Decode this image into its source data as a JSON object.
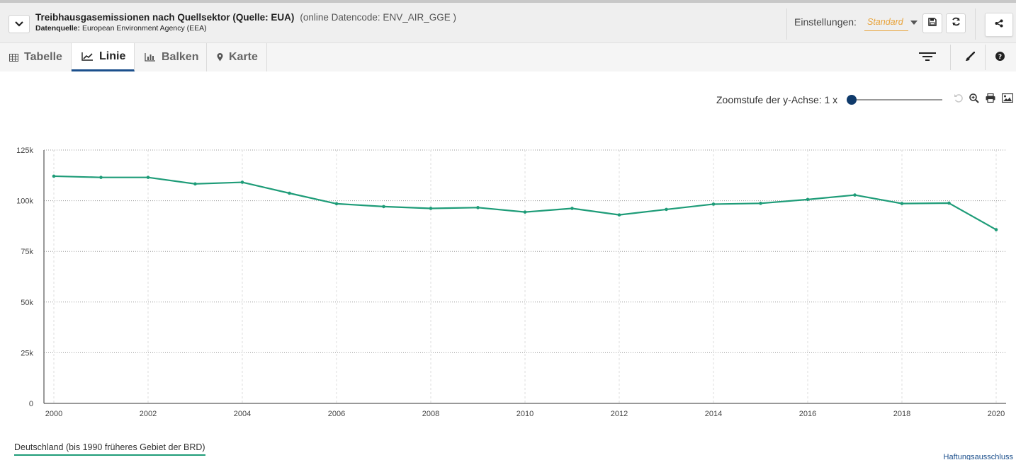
{
  "header": {
    "title": "Treibhausgasemissionen nach Quellsektor (Quelle: EUA)",
    "code": "(online Datencode: ENV_AIR_GGE )",
    "source_label": "Datenquelle:",
    "source_value": "European Environment Agency (EEA)",
    "settings_label": "Einstellungen:",
    "settings_value": "Standard"
  },
  "icons": {
    "collapse": "chevron-down-icon",
    "save": "floppy-disk-icon",
    "refresh": "refresh-icon",
    "share": "share-icon",
    "filter": "filter-icon",
    "style": "brush-icon",
    "help": "question-icon",
    "reset_zoom": "undo-icon",
    "zoom": "magnifier-icon",
    "print": "printer-icon",
    "image": "image-icon"
  },
  "tabs": [
    {
      "label": "Tabelle",
      "icon": "table-icon",
      "active": false
    },
    {
      "label": "Linie",
      "icon": "line-chart-icon",
      "active": true
    },
    {
      "label": "Balken",
      "icon": "bar-chart-icon",
      "active": false
    },
    {
      "label": "Karte",
      "icon": "map-marker-icon",
      "active": false
    }
  ],
  "zoom": {
    "label": "Zoomstufe der y-Achse: 1 x",
    "level": 0
  },
  "chart_data": {
    "type": "line",
    "x": [
      2000,
      2001,
      2002,
      2003,
      2004,
      2005,
      2006,
      2007,
      2008,
      2009,
      2010,
      2011,
      2012,
      2013,
      2014,
      2015,
      2016,
      2017,
      2018,
      2019,
      2020
    ],
    "series": [
      {
        "name": "Deutschland (bis 1990 früheres Gebiet der BRD)",
        "color": "#1e9c78",
        "values": [
          112100,
          111500,
          111500,
          108300,
          109100,
          103700,
          98500,
          97100,
          96200,
          96600,
          94400,
          96200,
          93000,
          95700,
          98300,
          98700,
          100600,
          102800,
          98600,
          98800,
          85700
        ]
      }
    ],
    "ylim": [
      0,
      125000
    ],
    "yticks": [
      0,
      25000,
      50000,
      75000,
      100000,
      125000
    ],
    "ytick_labels": [
      "0",
      "25k",
      "50k",
      "75k",
      "100k",
      "125k"
    ],
    "xticks": [
      2000,
      2002,
      2004,
      2006,
      2008,
      2010,
      2012,
      2014,
      2016,
      2018,
      2020
    ],
    "xtick_labels": [
      "2000",
      "2002",
      "2004",
      "2006",
      "2008",
      "2010",
      "2012",
      "2014",
      "2016",
      "2018",
      "2020"
    ],
    "grid": true,
    "legend": "bottom-left"
  },
  "footer": {
    "disclaimer": "Haftungsausschluss"
  }
}
